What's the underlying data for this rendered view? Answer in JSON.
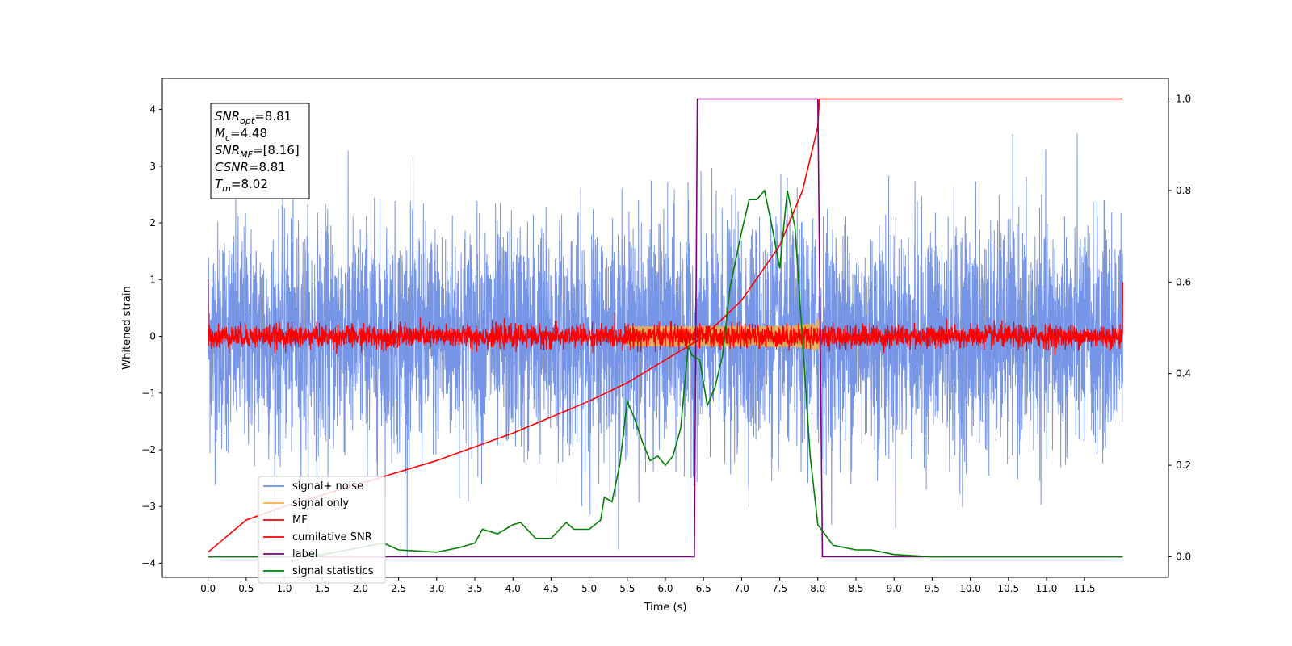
{
  "chart_data": {
    "type": "line",
    "xlabel": "Time (s)",
    "ylabel": "Whitened strain",
    "xlim": [
      -0.6,
      12.6
    ],
    "ylim": [
      -4.25,
      4.55
    ],
    "y2lim": [
      -0.045,
      1.045
    ],
    "x_ticks": [
      "0.0",
      "0.5",
      "1.0",
      "1.5",
      "2.0",
      "2.5",
      "3.0",
      "3.5",
      "4.0",
      "4.5",
      "5.0",
      "5.5",
      "6.0",
      "6.5",
      "7.0",
      "7.5",
      "8.0",
      "8.5",
      "9.0",
      "9.5",
      "10.0",
      "10.5",
      "11.0",
      "11.5"
    ],
    "y_ticks": [
      "4",
      "3",
      "2",
      "1",
      "0",
      "−1",
      "−2",
      "−3",
      "−4"
    ],
    "y2_ticks": [
      "1.0",
      "0.8",
      "0.6",
      "0.4",
      "0.2",
      "0.0"
    ],
    "legend_position": "lower-left",
    "info_box": [
      {
        "sym": "SNR",
        "sub": "opt",
        "val": "=8.81"
      },
      {
        "sym": "M",
        "sub": "c",
        "val": "=4.48"
      },
      {
        "sym": "SNR",
        "sub": "MF",
        "val": "=[8.16]"
      },
      {
        "sym": "CSNR",
        "sub": "",
        "val": "=8.81"
      },
      {
        "sym": "T",
        "sub": "m",
        "val": "=8.02"
      }
    ],
    "series": [
      {
        "name": "signal+ noise",
        "color": "#6f8fe6",
        "axis": "left",
        "style": "noise",
        "x_range": [
          0,
          12
        ],
        "amplitude_sd": 1.0
      },
      {
        "name": "signal only",
        "color": "#f5b041",
        "axis": "left",
        "style": "chirp",
        "x_range": [
          5.5,
          8.02
        ],
        "peak_amplitude": 0.6
      },
      {
        "name": "MF",
        "color": "#ff0000",
        "axis": "left",
        "style": "noise",
        "x_range": [
          0,
          12
        ],
        "amplitude_sd": 0.1
      },
      {
        "name": "cumilative SNR",
        "color": "#ff0000",
        "axis": "right",
        "x": [
          0,
          0.5,
          1,
          2,
          3,
          4,
          5,
          5.5,
          6,
          6.5,
          7,
          7.5,
          7.8,
          8.0,
          8.02,
          12
        ],
        "y": [
          0.01,
          0.08,
          0.11,
          0.16,
          0.21,
          0.27,
          0.34,
          0.38,
          0.43,
          0.48,
          0.56,
          0.68,
          0.8,
          0.94,
          1.0,
          1.0
        ]
      },
      {
        "name": "label",
        "color": "#800080",
        "axis": "right",
        "x": [
          0,
          6.38,
          6.42,
          8.0,
          8.06,
          12
        ],
        "y": [
          0,
          0,
          1,
          1,
          0,
          0
        ]
      },
      {
        "name": "signal statistics",
        "color": "#008000",
        "axis": "right",
        "x": [
          0,
          0.5,
          1,
          1.5,
          2,
          2.3,
          2.5,
          3,
          3.3,
          3.5,
          3.6,
          3.8,
          4.0,
          4.1,
          4.3,
          4.5,
          4.7,
          4.8,
          5.0,
          5.15,
          5.2,
          5.3,
          5.4,
          5.5,
          5.6,
          5.7,
          5.8,
          5.9,
          6.0,
          6.1,
          6.2,
          6.3,
          6.35,
          6.45,
          6.55,
          6.65,
          6.75,
          6.85,
          7.0,
          7.1,
          7.2,
          7.3,
          7.4,
          7.5,
          7.6,
          7.7,
          7.8,
          7.9,
          8.0,
          8.2,
          8.5,
          8.7,
          9.0,
          9.5,
          10,
          11,
          12
        ],
        "y": [
          0.0,
          0.0,
          0.0,
          0.005,
          0.02,
          0.03,
          0.015,
          0.01,
          0.02,
          0.03,
          0.06,
          0.05,
          0.07,
          0.075,
          0.04,
          0.04,
          0.075,
          0.06,
          0.06,
          0.08,
          0.13,
          0.12,
          0.2,
          0.34,
          0.3,
          0.25,
          0.21,
          0.22,
          0.2,
          0.22,
          0.28,
          0.46,
          0.44,
          0.43,
          0.33,
          0.37,
          0.44,
          0.59,
          0.71,
          0.78,
          0.78,
          0.8,
          0.72,
          0.63,
          0.8,
          0.72,
          0.47,
          0.22,
          0.07,
          0.025,
          0.015,
          0.015,
          0.005,
          0.0,
          0.0,
          0.0,
          0.0
        ]
      }
    ]
  }
}
